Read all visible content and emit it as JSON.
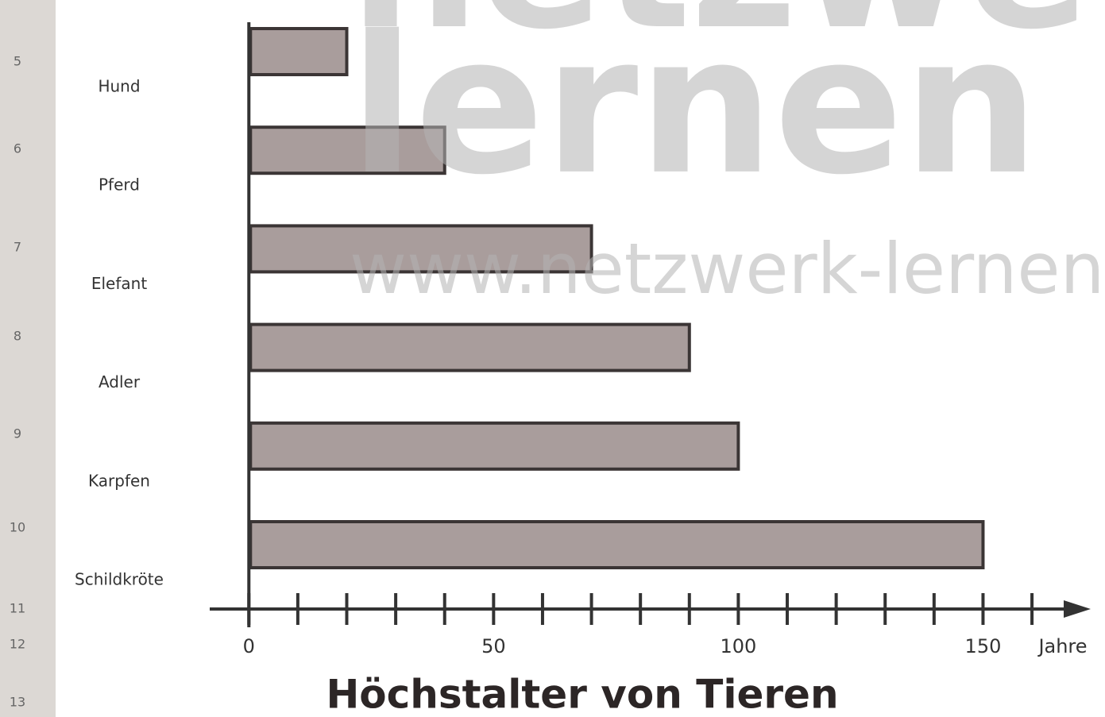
{
  "chart_data": {
    "type": "barh",
    "title": "Höchstalter von Tieren",
    "categories": [
      "Hund",
      "Pferd",
      "Elefant",
      "Adler",
      "Karpfen",
      "Schildkröte"
    ],
    "values": [
      20,
      40,
      70,
      90,
      100,
      150
    ],
    "color": "#a99d9c",
    "xlabel": "Jahre",
    "xlim": [
      -8,
      172
    ],
    "xticks": [
      0,
      50,
      100,
      150
    ],
    "minor_xticks": [
      10,
      20,
      30,
      40,
      60,
      70,
      80,
      90,
      110,
      120,
      130,
      140,
      160
    ],
    "line_numbers": [
      "5",
      "6",
      "7",
      "8",
      "9",
      "10",
      "11",
      "12",
      "13"
    ]
  },
  "watermark": {
    "top": "netzwerk",
    "middle": "lernen",
    "url": "www.netzwerk-lernen.d"
  }
}
